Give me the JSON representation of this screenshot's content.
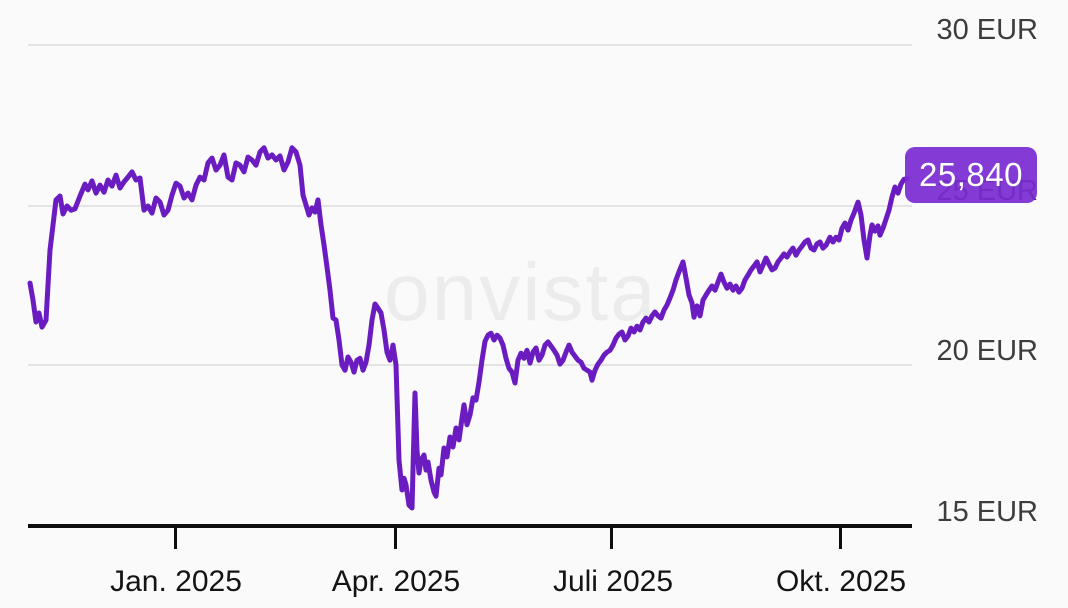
{
  "watermark": "onvista",
  "price_badge": {
    "label": "25,840",
    "background_color": "#7a2ad3",
    "text_color": "#ffffff"
  },
  "axes": {
    "y_ticks": [
      {
        "value": 30,
        "label": "30 EUR"
      },
      {
        "value": 25,
        "label": "25 EUR"
      },
      {
        "value": 20,
        "label": "20 EUR"
      },
      {
        "value": 15,
        "label": "15 EUR"
      }
    ],
    "x_ticks": [
      {
        "label": "Jan. 2025"
      },
      {
        "label": "Apr. 2025"
      },
      {
        "label": "Juli 2025"
      },
      {
        "label": "Okt. 2025"
      }
    ]
  },
  "chart_data": {
    "type": "line",
    "title": "",
    "xlabel": "",
    "ylabel": "EUR",
    "ylim": [
      15,
      30
    ],
    "grid": true,
    "x_tick_labels": [
      "Jan. 2025",
      "Apr. 2025",
      "Juli 2025",
      "Okt. 2025"
    ],
    "y_tick_values": [
      15,
      20,
      25,
      30
    ],
    "line_color": "#6a1cc1",
    "last_value": 25.84,
    "last_value_label": "25,840",
    "points": [
      [
        30,
        22.59
      ],
      [
        33,
        22.06
      ],
      [
        36,
        21.38
      ],
      [
        39,
        21.66
      ],
      [
        42,
        21.22
      ],
      [
        46,
        21.44
      ],
      [
        50,
        23.62
      ],
      [
        53,
        24.4
      ],
      [
        56,
        25.18
      ],
      [
        60,
        25.3
      ],
      [
        63,
        24.74
      ],
      [
        67,
        24.99
      ],
      [
        71,
        24.86
      ],
      [
        75,
        24.9
      ],
      [
        80,
        25.3
      ],
      [
        85,
        25.67
      ],
      [
        88,
        25.49
      ],
      [
        92,
        25.77
      ],
      [
        96,
        25.39
      ],
      [
        100,
        25.64
      ],
      [
        104,
        25.42
      ],
      [
        108,
        25.8
      ],
      [
        112,
        25.61
      ],
      [
        116,
        25.95
      ],
      [
        120,
        25.55
      ],
      [
        124,
        25.74
      ],
      [
        128,
        25.89
      ],
      [
        132,
        26.05
      ],
      [
        136,
        25.8
      ],
      [
        140,
        25.86
      ],
      [
        144,
        24.86
      ],
      [
        148,
        24.99
      ],
      [
        152,
        24.77
      ],
      [
        156,
        25.24
      ],
      [
        160,
        25.11
      ],
      [
        164,
        24.71
      ],
      [
        168,
        24.86
      ],
      [
        172,
        25.33
      ],
      [
        176,
        25.7
      ],
      [
        180,
        25.61
      ],
      [
        184,
        25.24
      ],
      [
        188,
        25.39
      ],
      [
        192,
        25.18
      ],
      [
        196,
        25.64
      ],
      [
        200,
        25.89
      ],
      [
        204,
        25.8
      ],
      [
        208,
        26.33
      ],
      [
        212,
        26.48
      ],
      [
        216,
        26.11
      ],
      [
        220,
        26.26
      ],
      [
        224,
        26.58
      ],
      [
        228,
        25.89
      ],
      [
        232,
        25.8
      ],
      [
        236,
        26.33
      ],
      [
        240,
        26.26
      ],
      [
        244,
        26.05
      ],
      [
        248,
        26.51
      ],
      [
        252,
        26.42
      ],
      [
        256,
        26.26
      ],
      [
        260,
        26.67
      ],
      [
        264,
        26.8
      ],
      [
        268,
        26.48
      ],
      [
        272,
        26.58
      ],
      [
        276,
        26.42
      ],
      [
        280,
        26.55
      ],
      [
        284,
        26.11
      ],
      [
        288,
        26.36
      ],
      [
        292,
        26.8
      ],
      [
        296,
        26.67
      ],
      [
        300,
        26.26
      ],
      [
        303,
        25.33
      ],
      [
        306,
        25.02
      ],
      [
        309,
        24.71
      ],
      [
        312,
        24.93
      ],
      [
        315,
        24.8
      ],
      [
        318,
        25.18
      ],
      [
        321,
        24.4
      ],
      [
        324,
        23.78
      ],
      [
        327,
        23.09
      ],
      [
        330,
        22.37
      ],
      [
        333,
        21.5
      ],
      [
        336,
        21.44
      ],
      [
        339,
        20.82
      ],
      [
        342,
        20.04
      ],
      [
        345,
        19.88
      ],
      [
        348,
        20.29
      ],
      [
        351,
        20.13
      ],
      [
        354,
        19.82
      ],
      [
        357,
        20.19
      ],
      [
        360,
        20.25
      ],
      [
        363,
        19.88
      ],
      [
        366,
        20.13
      ],
      [
        369,
        20.66
      ],
      [
        372,
        21.44
      ],
      [
        375,
        21.94
      ],
      [
        378,
        21.81
      ],
      [
        381,
        21.66
      ],
      [
        384,
        21.13
      ],
      [
        387,
        20.44
      ],
      [
        390,
        20.19
      ],
      [
        393,
        20.66
      ],
      [
        396,
        20.04
      ],
      [
        399,
        17.08
      ],
      [
        402,
        16.15
      ],
      [
        404,
        16.52
      ],
      [
        406,
        16.31
      ],
      [
        409,
        15.68
      ],
      [
        412,
        15.59
      ],
      [
        415,
        19.17
      ],
      [
        417,
        17.39
      ],
      [
        419,
        16.68
      ],
      [
        421,
        17.08
      ],
      [
        424,
        17.24
      ],
      [
        426,
        16.77
      ],
      [
        428,
        17.02
      ],
      [
        431,
        16.46
      ],
      [
        434,
        16.09
      ],
      [
        436,
        15.96
      ],
      [
        439,
        16.83
      ],
      [
        441,
        16.62
      ],
      [
        444,
        17.46
      ],
      [
        447,
        17.18
      ],
      [
        450,
        17.8
      ],
      [
        453,
        17.49
      ],
      [
        456,
        18.08
      ],
      [
        459,
        17.71
      ],
      [
        462,
        18.39
      ],
      [
        464,
        18.8
      ],
      [
        467,
        18.18
      ],
      [
        470,
        18.49
      ],
      [
        473,
        19.02
      ],
      [
        476,
        18.95
      ],
      [
        479,
        19.51
      ],
      [
        482,
        20.19
      ],
      [
        485,
        20.78
      ],
      [
        488,
        20.97
      ],
      [
        491,
        21.03
      ],
      [
        494,
        20.82
      ],
      [
        497,
        20.97
      ],
      [
        500,
        20.88
      ],
      [
        503,
        20.66
      ],
      [
        506,
        20.25
      ],
      [
        509,
        19.94
      ],
      [
        512,
        19.82
      ],
      [
        515,
        19.48
      ],
      [
        518,
        20.19
      ],
      [
        521,
        20.41
      ],
      [
        524,
        20.25
      ],
      [
        527,
        20.5
      ],
      [
        530,
        20.1
      ],
      [
        533,
        20.44
      ],
      [
        536,
        20.57
      ],
      [
        539,
        20.19
      ],
      [
        542,
        20.35
      ],
      [
        545,
        20.66
      ],
      [
        548,
        20.76
      ],
      [
        551,
        20.63
      ],
      [
        554,
        20.5
      ],
      [
        557,
        20.35
      ],
      [
        560,
        20.07
      ],
      [
        563,
        20.19
      ],
      [
        566,
        20.44
      ],
      [
        569,
        20.66
      ],
      [
        572,
        20.44
      ],
      [
        575,
        20.32
      ],
      [
        578,
        20.19
      ],
      [
        581,
        20.13
      ],
      [
        584,
        19.94
      ],
      [
        587,
        19.88
      ],
      [
        590,
        19.82
      ],
      [
        592,
        19.57
      ],
      [
        595,
        19.88
      ],
      [
        598,
        20.07
      ],
      [
        601,
        20.19
      ],
      [
        604,
        20.35
      ],
      [
        607,
        20.44
      ],
      [
        610,
        20.5
      ],
      [
        613,
        20.66
      ],
      [
        616,
        20.88
      ],
      [
        619,
        21.0
      ],
      [
        622,
        21.07
      ],
      [
        625,
        20.82
      ],
      [
        628,
        20.94
      ],
      [
        631,
        21.19
      ],
      [
        634,
        21.07
      ],
      [
        637,
        21.25
      ],
      [
        640,
        21.13
      ],
      [
        643,
        21.38
      ],
      [
        646,
        21.5
      ],
      [
        649,
        21.38
      ],
      [
        652,
        21.57
      ],
      [
        655,
        21.69
      ],
      [
        658,
        21.57
      ],
      [
        661,
        21.5
      ],
      [
        664,
        21.75
      ],
      [
        667,
        21.91
      ],
      [
        670,
        22.13
      ],
      [
        673,
        22.37
      ],
      [
        676,
        22.69
      ],
      [
        679,
        22.94
      ],
      [
        683,
        23.25
      ],
      [
        686,
        22.75
      ],
      [
        689,
        22.22
      ],
      [
        692,
        21.97
      ],
      [
        694,
        21.53
      ],
      [
        697,
        21.88
      ],
      [
        700,
        21.57
      ],
      [
        703,
        22.06
      ],
      [
        706,
        22.22
      ],
      [
        709,
        22.37
      ],
      [
        712,
        22.5
      ],
      [
        715,
        22.37
      ],
      [
        718,
        22.62
      ],
      [
        721,
        22.87
      ],
      [
        724,
        22.62
      ],
      [
        727,
        22.43
      ],
      [
        730,
        22.56
      ],
      [
        733,
        22.37
      ],
      [
        736,
        22.5
      ],
      [
        739,
        22.31
      ],
      [
        742,
        22.43
      ],
      [
        745,
        22.69
      ],
      [
        748,
        22.84
      ],
      [
        751,
        23.0
      ],
      [
        754,
        23.12
      ],
      [
        757,
        23.25
      ],
      [
        760,
        22.94
      ],
      [
        763,
        23.15
      ],
      [
        766,
        23.37
      ],
      [
        769,
        23.18
      ],
      [
        772,
        23.0
      ],
      [
        775,
        23.06
      ],
      [
        778,
        23.25
      ],
      [
        781,
        23.37
      ],
      [
        784,
        23.5
      ],
      [
        787,
        23.4
      ],
      [
        790,
        23.56
      ],
      [
        793,
        23.68
      ],
      [
        796,
        23.46
      ],
      [
        799,
        23.62
      ],
      [
        802,
        23.74
      ],
      [
        805,
        23.87
      ],
      [
        808,
        23.93
      ],
      [
        811,
        23.68
      ],
      [
        814,
        23.62
      ],
      [
        817,
        23.81
      ],
      [
        820,
        23.87
      ],
      [
        823,
        23.68
      ],
      [
        826,
        23.77
      ],
      [
        830,
        24.02
      ],
      [
        833,
        23.87
      ],
      [
        836,
        24.02
      ],
      [
        839,
        23.93
      ],
      [
        842,
        24.3
      ],
      [
        845,
        24.46
      ],
      [
        848,
        24.24
      ],
      [
        851,
        24.55
      ],
      [
        854,
        24.77
      ],
      [
        858,
        25.11
      ],
      [
        861,
        24.71
      ],
      [
        864,
        23.93
      ],
      [
        867,
        23.37
      ],
      [
        870,
        24.08
      ],
      [
        872,
        24.4
      ],
      [
        875,
        24.21
      ],
      [
        878,
        24.37
      ],
      [
        880,
        24.08
      ],
      [
        883,
        24.3
      ],
      [
        886,
        24.58
      ],
      [
        889,
        24.86
      ],
      [
        892,
        25.27
      ],
      [
        895,
        25.58
      ],
      [
        898,
        25.39
      ],
      [
        901,
        25.67
      ],
      [
        904,
        25.82
      ],
      [
        907,
        25.84
      ]
    ]
  }
}
